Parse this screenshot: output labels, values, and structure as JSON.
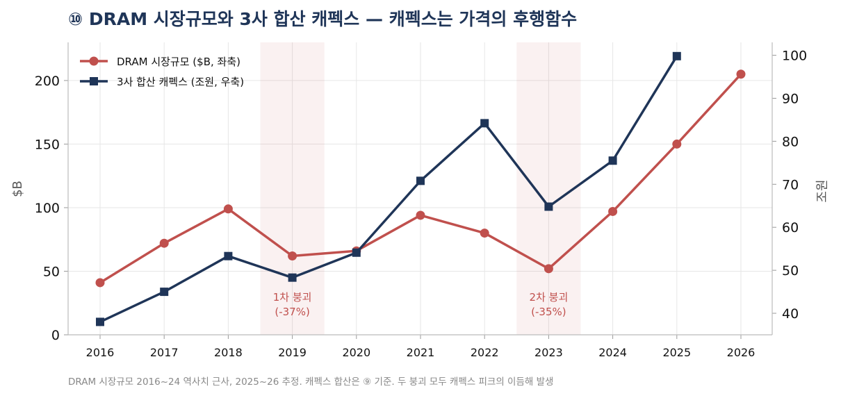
{
  "chart_data": {
    "type": "line",
    "title": "⑩ DRAM 시장규모와 3사 합산 캐펙스 — 캐펙스는 가격의 후행함수",
    "x": [
      "2016",
      "2017",
      "2018",
      "2019",
      "2020",
      "2021",
      "2022",
      "2023",
      "2024",
      "2025",
      "2026"
    ],
    "y_left": {
      "label": "$B",
      "ylim": [
        0,
        230
      ],
      "ticks": [
        "0",
        "50",
        "100",
        "150",
        "200"
      ]
    },
    "y_right": {
      "label": "조원",
      "ylim": [
        35,
        103
      ],
      "ticks": [
        "40",
        "50",
        "60",
        "70",
        "80",
        "90",
        "100"
      ]
    },
    "series": [
      {
        "name": "DRAM 시장규모 ($B, 좌축)",
        "axis": "left",
        "color": "#c0504d",
        "marker": "circle",
        "x": [
          "2016",
          "2017",
          "2018",
          "2019",
          "2020",
          "2021",
          "2022",
          "2023",
          "2024",
          "2025",
          "2026"
        ],
        "values": [
          41,
          72,
          99,
          62,
          66,
          94,
          80,
          52,
          97,
          150,
          205
        ]
      },
      {
        "name": "3사 합산 캐펙스 (조원, 우축)",
        "axis": "right",
        "color": "#1f3558",
        "marker": "square",
        "x": [
          "2016",
          "2017",
          "2018",
          "2019",
          "2020",
          "2021",
          "2022",
          "2023",
          "2024",
          "2025"
        ],
        "values": [
          38,
          45,
          53.3,
          48.3,
          54.1,
          70.8,
          84.2,
          64.8,
          75.5,
          99.8
        ]
      }
    ],
    "shaded_regions": [
      {
        "from": 2018.5,
        "to": 2019.5,
        "label_line1": "1차 붕괴",
        "label_line2": "(-37%)"
      },
      {
        "from": 2022.5,
        "to": 2023.5,
        "label_line1": "2차 붕괴",
        "label_line2": "(-35%)"
      }
    ],
    "grid": true,
    "legend_position": "top-left",
    "footnote": "DRAM 시장규모 2016~24 역사치 근사, 2025~26 추정. 캐펙스 합산은 ⑨ 기준. 두 붕괴 모두 캐펙스 피크의 이듬해 발생"
  }
}
